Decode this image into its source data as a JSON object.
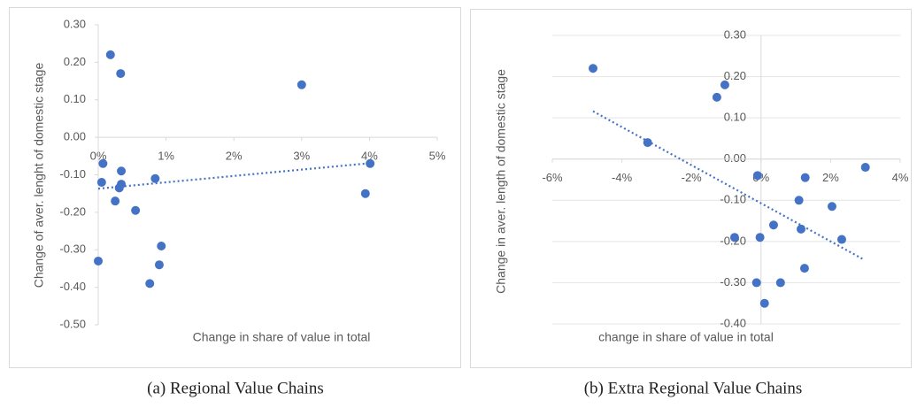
{
  "chart_data": [
    {
      "type": "scatter",
      "caption": "(a) Regional Value Chains",
      "x_label": "Change in share of value in total",
      "y_label": "Change of aver. lenght of domestic stage",
      "color": "#4472c4",
      "grid": false,
      "x": [
        0.18,
        0.33,
        3.0,
        0.07,
        0.34,
        0.05,
        0.34,
        0.31,
        0.84,
        0.25,
        0.55,
        4.01,
        3.94,
        0.93,
        0.9,
        0.76,
        0.0
      ],
      "values": [
        0.22,
        0.17,
        0.14,
        -0.07,
        -0.09,
        -0.12,
        -0.125,
        -0.135,
        -0.11,
        -0.17,
        -0.195,
        -0.07,
        -0.15,
        -0.29,
        -0.34,
        -0.39,
        -0.33
      ],
      "trendline": {
        "x": [
          0,
          4.01
        ],
        "values": [
          -0.137,
          -0.069
        ]
      },
      "xlim": [
        0,
        5
      ],
      "xticks": [
        {
          "value": 0,
          "label": "0%"
        },
        {
          "value": 1,
          "label": "1%"
        },
        {
          "value": 2,
          "label": "2%"
        },
        {
          "value": 3,
          "label": "3%"
        },
        {
          "value": 4,
          "label": "4%"
        },
        {
          "value": 5,
          "label": "5%"
        }
      ],
      "ylim": [
        -0.5,
        0.3
      ],
      "yticks": [
        {
          "value": 0.3,
          "label": "0.30"
        },
        {
          "value": 0.2,
          "label": "0.20"
        },
        {
          "value": 0.1,
          "label": "0.10"
        },
        {
          "value": 0,
          "label": "0.00"
        },
        {
          "value": -0.1,
          "label": "-0.10"
        },
        {
          "value": -0.2,
          "label": "-0.20"
        },
        {
          "value": -0.3,
          "label": "-0.30"
        },
        {
          "value": -0.4,
          "label": "-0.40"
        },
        {
          "value": -0.5,
          "label": "-0.50"
        }
      ]
    },
    {
      "type": "scatter",
      "caption": "(b) Extra Regional Value Chains",
      "x_label": "change in share of value in total",
      "y_label": "Change in aver. length of domestic stage",
      "color": "#4472c4",
      "grid": true,
      "x": [
        -4.83,
        -3.26,
        -1.27,
        -1.04,
        -0.1,
        1.27,
        3.0,
        1.09,
        2.04,
        1.15,
        0.36,
        -0.76,
        -0.03,
        2.32,
        1.25,
        0.56,
        -0.13,
        0.1
      ],
      "values": [
        0.22,
        0.04,
        0.15,
        0.18,
        -0.04,
        -0.045,
        -0.02,
        -0.1,
        -0.115,
        -0.17,
        -0.16,
        -0.19,
        -0.19,
        -0.195,
        -0.265,
        -0.3,
        -0.3,
        -0.35
      ],
      "trendline": {
        "x": [
          -4.83,
          2.98
        ],
        "values": [
          0.116,
          -0.245
        ]
      },
      "xlim": [
        -6,
        4
      ],
      "xticks": [
        {
          "value": -6,
          "label": "-6%"
        },
        {
          "value": -4,
          "label": "-4%"
        },
        {
          "value": -2,
          "label": "-2%"
        },
        {
          "value": 0,
          "label": "0%"
        },
        {
          "value": 2,
          "label": "2%"
        },
        {
          "value": 4,
          "label": "4%"
        }
      ],
      "ylim": [
        -0.4,
        0.3
      ],
      "yticks": [
        {
          "value": 0.3,
          "label": "0.30"
        },
        {
          "value": 0.2,
          "label": "0.20"
        },
        {
          "value": 0.1,
          "label": "0.10"
        },
        {
          "value": 0,
          "label": "0.00"
        },
        {
          "value": -0.1,
          "label": "-0.10"
        },
        {
          "value": -0.2,
          "label": "-0.20"
        },
        {
          "value": -0.3,
          "label": "-0.30"
        },
        {
          "value": -0.4,
          "label": "-0.40"
        }
      ]
    }
  ]
}
